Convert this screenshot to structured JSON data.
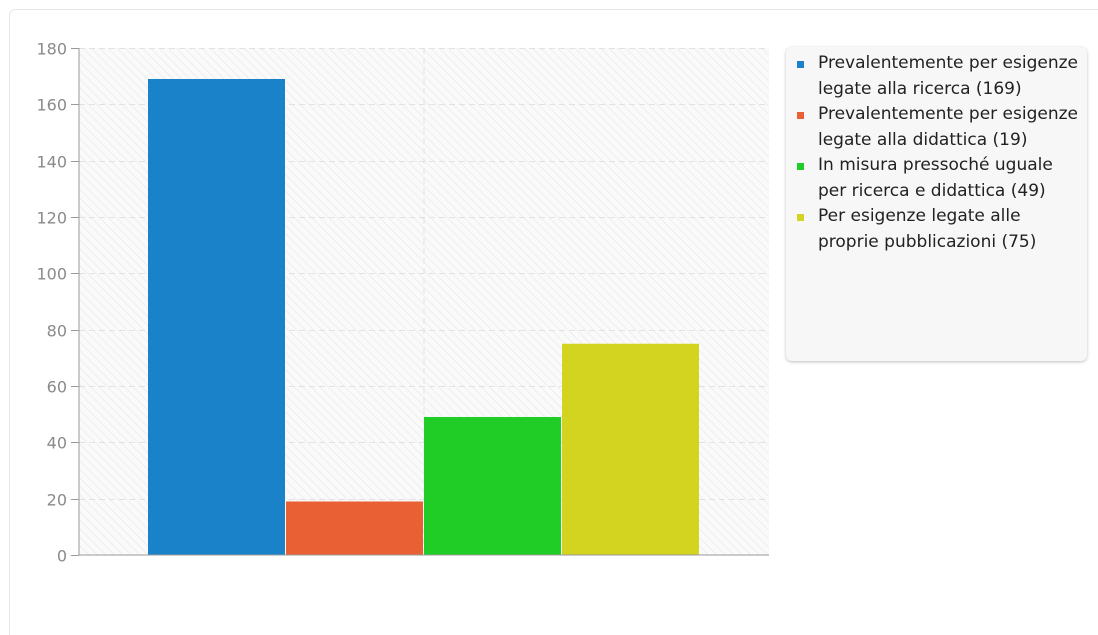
{
  "chart_data": {
    "type": "bar",
    "categories": [
      "Prevalentemente per esigenze legate alla ricerca (169)",
      "Prevalentemente per esigenze legate alla didattica (19)",
      "In misura pressoché uguale per ricerca e didattica (49)",
      "Per esigenze legate alle proprie pubblicazioni (75)"
    ],
    "values": [
      169,
      19,
      49,
      75
    ],
    "colors": [
      "#1a82c8",
      "#e96035",
      "#20cd27",
      "#d3d41f"
    ],
    "ylim": [
      0,
      180
    ],
    "yticks": [
      0,
      20,
      40,
      60,
      80,
      100,
      120,
      140,
      160,
      180
    ],
    "grid": true,
    "legend_position": "right",
    "title": "",
    "xlabel": "",
    "ylabel": ""
  },
  "legend": {
    "items": [
      {
        "label": "Prevalentemente per esigenze legate alla ricerca (169)",
        "color": "#1a82c8"
      },
      {
        "label": "Prevalentemente per esigenze legate alla didattica (19)",
        "color": "#e96035"
      },
      {
        "label": "In misura pressoché uguale per ricerca e didattica (49)",
        "color": "#20cd27"
      },
      {
        "label": "Per esigenze legate alle proprie pubblicazioni (75)",
        "color": "#d3d41f"
      }
    ]
  }
}
